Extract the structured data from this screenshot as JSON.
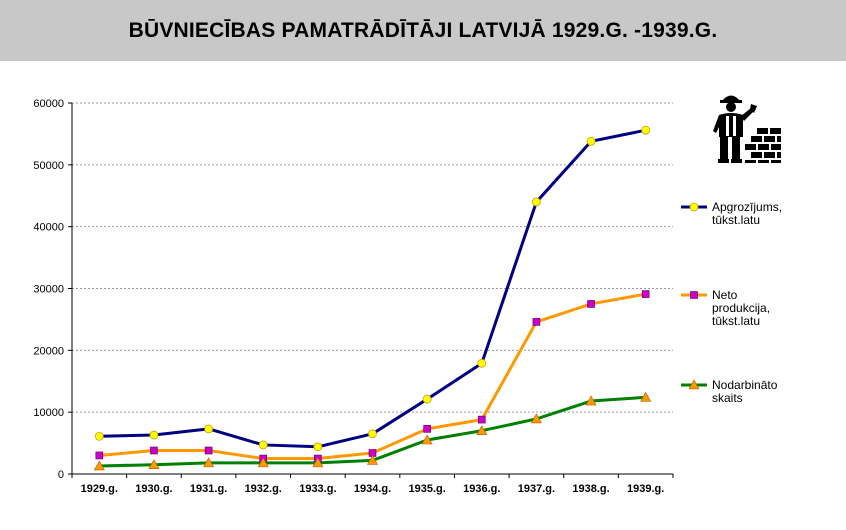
{
  "title": "BŪVNIECĪBAS PAMATRĀDĪTĀJI LATVIJĀ 1929.G. -1939.G.",
  "decoration": {
    "icon": "construction-worker-with-bricks-icon"
  },
  "chart_data": {
    "type": "line",
    "title": "BŪVNIECĪBAS PAMATRĀDĪTĀJI LATVIJĀ 1929.G. -1939.G.",
    "xlabel": "",
    "ylabel": "",
    "categories": [
      "1929.g.",
      "1930.g.",
      "1931.g.",
      "1932.g.",
      "1933.g.",
      "1934.g.",
      "1935.g.",
      "1936.g.",
      "1937.g.",
      "1938.g.",
      "1939.g."
    ],
    "ylim": [
      0,
      60000
    ],
    "yticks": [
      0,
      10000,
      20000,
      30000,
      40000,
      50000,
      60000
    ],
    "grid": true,
    "legend_position": "right",
    "series": [
      {
        "name": "Apgrozījums, tūkst.latu",
        "legend_lines": [
          "Apgrozījums,",
          "tūkst.latu"
        ],
        "color": "#000080",
        "marker": "circle",
        "marker_color": "#ffff00",
        "values": [
          6100,
          6300,
          7300,
          4700,
          4400,
          6500,
          12100,
          17900,
          44000,
          53800,
          55600
        ]
      },
      {
        "name": "Neto produkcija, tūkst.latu",
        "legend_lines": [
          "Neto",
          "produkcija,",
          "tūkst.latu"
        ],
        "color": "#ff9900",
        "marker": "square",
        "marker_color": "#cc00cc",
        "values": [
          3000,
          3800,
          3800,
          2500,
          2500,
          3400,
          7300,
          8800,
          24600,
          27500,
          29100
        ]
      },
      {
        "name": "Nodarbināto skaits",
        "legend_lines": [
          "Nodarbināto",
          "skaits"
        ],
        "color": "#008000",
        "marker": "triangle",
        "marker_color": "#ff9900",
        "values": [
          1300,
          1500,
          1800,
          1800,
          1800,
          2200,
          5500,
          7000,
          8900,
          11800,
          12400
        ]
      }
    ]
  }
}
